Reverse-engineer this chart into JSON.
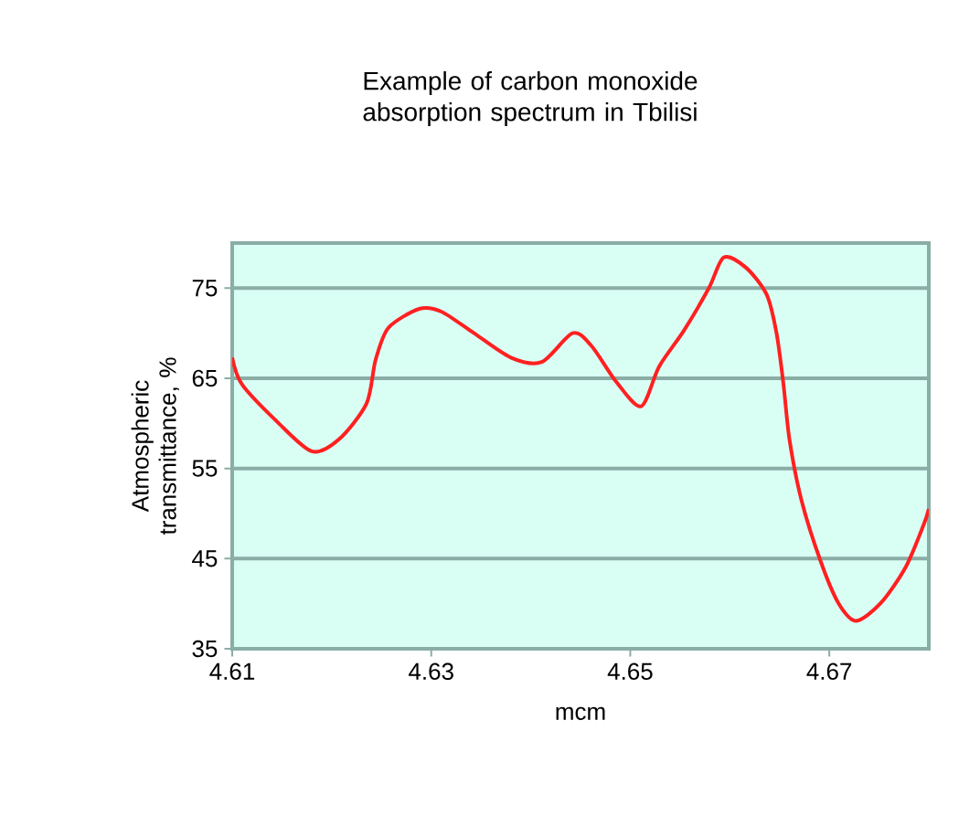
{
  "chart_data": {
    "type": "line",
    "title": "Example of carbon monoxide absorption spectrum in Tbilisi",
    "xlabel": "mcm",
    "ylabel": "Atmospheric transmittance, %",
    "x": [
      4.61,
      4.611,
      4.6145,
      4.618,
      4.6207,
      4.6235,
      4.6244,
      4.6257,
      4.6288,
      4.631,
      4.6343,
      4.638,
      4.6411,
      4.6442,
      4.6461,
      4.6486,
      4.6511,
      4.6529,
      4.6554,
      4.6579,
      4.6594,
      4.6616,
      4.6637,
      4.6647,
      4.6654,
      4.666,
      4.6672,
      4.6691,
      4.6709,
      4.6727,
      4.6752,
      4.6777,
      4.6795,
      4.68
    ],
    "values": [
      67.3,
      64.3,
      60.2,
      56.9,
      58.2,
      62.2,
      67,
      70.6,
      72.7,
      72.4,
      70,
      67.3,
      66.8,
      70,
      68.6,
      64.6,
      61.9,
      66.3,
      70.3,
      75,
      78.4,
      77.3,
      74.3,
      70,
      64.3,
      58.2,
      51.5,
      44.8,
      40.1,
      38.1,
      40.1,
      44.1,
      48.8,
      50.5
    ],
    "color": "#ff2020",
    "xlim": [
      4.61,
      4.68
    ],
    "ylim": [
      35,
      80
    ],
    "xticks": [
      4.61,
      4.63,
      4.65,
      4.67
    ],
    "yticks": [
      35,
      45,
      55,
      65,
      75
    ],
    "grid": "y",
    "marker": "none",
    "line_style": "solid"
  }
}
